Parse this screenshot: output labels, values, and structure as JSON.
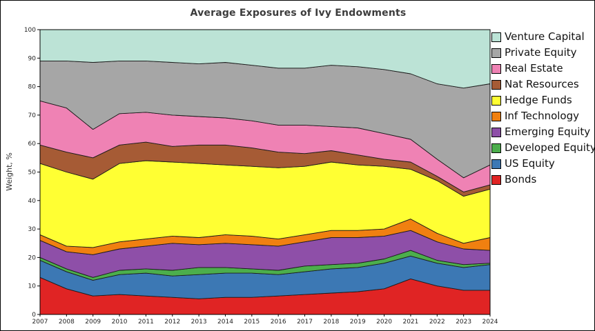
{
  "chart_data": {
    "type": "area",
    "stacked": true,
    "title": "Average Exposures of Ivy Endowments",
    "xlabel": "",
    "ylabel": "Weight, %",
    "ylim": [
      0,
      100
    ],
    "yticks": [
      0,
      10,
      20,
      30,
      40,
      50,
      60,
      70,
      80,
      90,
      100
    ],
    "grid": false,
    "legend_position": "right",
    "x": [
      2007,
      2008,
      2009,
      2010,
      2011,
      2012,
      2013,
      2014,
      2015,
      2016,
      2017,
      2018,
      2019,
      2020,
      2021,
      2022,
      2023,
      2024
    ],
    "series": [
      {
        "name": "Bonds",
        "color": "#e02424",
        "values": [
          13,
          9,
          6.5,
          7,
          6.5,
          6,
          5.5,
          6,
          6,
          6.5,
          7,
          7.5,
          8,
          9,
          12.5,
          10,
          8.5,
          8.5
        ]
      },
      {
        "name": "US Equity",
        "color": "#3c78b4",
        "values": [
          6,
          6,
          5.5,
          7,
          8,
          7.5,
          8.5,
          8.5,
          8.5,
          7.5,
          8,
          8.5,
          8.5,
          9,
          8,
          8,
          8,
          9
        ]
      },
      {
        "name": "Developed Equity",
        "color": "#4cae4c",
        "values": [
          1,
          1,
          1,
          1.5,
          1.5,
          2,
          2.5,
          2,
          1.5,
          1.5,
          2,
          1.5,
          1.5,
          1.5,
          2,
          1,
          1,
          0.5
        ]
      },
      {
        "name": "Emerging Equity",
        "color": "#8e4fa8",
        "values": [
          6,
          6,
          8,
          7.5,
          8,
          9.5,
          8,
          8.5,
          8.5,
          8.5,
          8.5,
          9.5,
          9,
          8,
          7,
          6.5,
          5.5,
          4.5
        ]
      },
      {
        "name": "Inf Technology",
        "color": "#f08010",
        "values": [
          2,
          2,
          2.5,
          2.5,
          2.5,
          2.5,
          2.5,
          3,
          3,
          2.5,
          2.5,
          2.5,
          2.5,
          2.5,
          4,
          3,
          2,
          4.5
        ]
      },
      {
        "name": "Hedge Funds",
        "color": "#ffff33",
        "values": [
          25,
          26,
          24,
          27.5,
          27.5,
          26,
          26,
          24.5,
          24.5,
          25,
          24,
          24,
          23,
          22,
          17.5,
          18.5,
          16.5,
          17
        ]
      },
      {
        "name": "Nat Resources",
        "color": "#a65b35",
        "values": [
          6.5,
          7,
          7.5,
          6.5,
          6.5,
          5.5,
          6.5,
          7,
          6.5,
          5.5,
          4.5,
          4,
          3.5,
          2.5,
          2.5,
          1.5,
          1.5,
          1.5
        ]
      },
      {
        "name": "Real Estate",
        "color": "#ef82b4",
        "values": [
          15.5,
          15.5,
          10,
          11,
          10.5,
          11,
          10,
          9.5,
          9.5,
          9.5,
          10,
          8.5,
          9.5,
          9,
          8,
          6,
          5,
          7
        ]
      },
      {
        "name": "Private Equity",
        "color": "#a6a6a6",
        "values": [
          14,
          16.5,
          23.5,
          18.5,
          18,
          18.5,
          18.5,
          19.5,
          19.5,
          20,
          20,
          21.5,
          21.5,
          22.5,
          23,
          26.5,
          31.5,
          28.5
        ]
      },
      {
        "name": "Venture Capital",
        "color": "#bce3d6",
        "values": [
          11,
          11,
          11.5,
          11,
          11,
          11.5,
          12,
          11.5,
          12.5,
          13.5,
          13.5,
          12.5,
          13,
          14,
          15.5,
          19,
          20.5,
          19
        ]
      }
    ],
    "legend_order_top_to_bottom": [
      "Venture Capital",
      "Private Equity",
      "Real Estate",
      "Nat Resources",
      "Hedge Funds",
      "Inf Technology",
      "Emerging Equity",
      "Developed Equity",
      "US Equity",
      "Bonds"
    ]
  }
}
